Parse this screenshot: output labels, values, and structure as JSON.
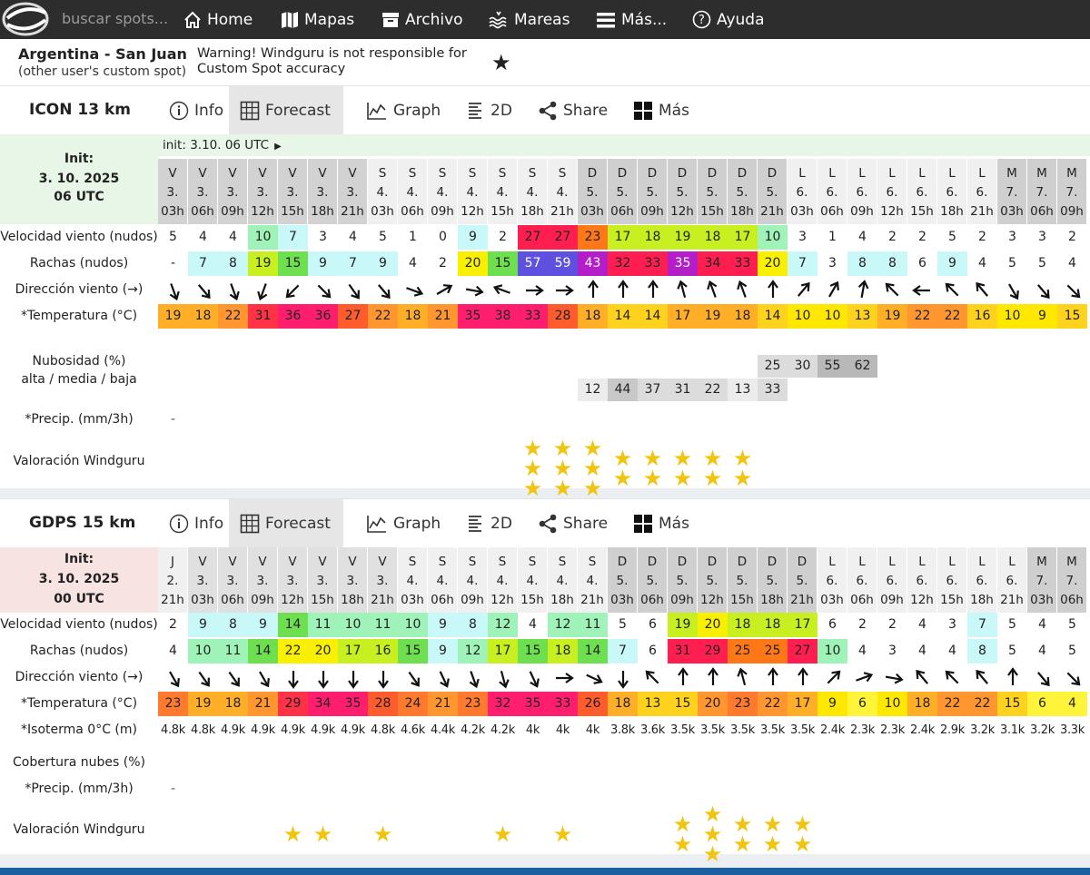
{
  "nav": {
    "search_placeholder": "buscar spots...",
    "items": [
      {
        "label": "Home",
        "icon": "home-icon"
      },
      {
        "label": "Mapas",
        "icon": "map-icon"
      },
      {
        "label": "Archivo",
        "icon": "archive-icon"
      },
      {
        "label": "Mareas",
        "icon": "tides-icon"
      },
      {
        "label": "Más...",
        "icon": "menu-icon"
      },
      {
        "label": "Ayuda",
        "icon": "help-icon"
      }
    ]
  },
  "spot": {
    "name": "Argentina - San Juan",
    "subtitle": "(other user's custom spot)",
    "warning": "Warning! Windguru is not responsible for Custom Spot accuracy",
    "fav": "★"
  },
  "tabs": [
    "Info",
    "Forecast",
    "Graph",
    "2D",
    "Share",
    "Más"
  ],
  "models": [
    {
      "id": "icon",
      "name": "ICON 13 km",
      "init_label": "Init:",
      "init_date": "3. 10. 2025",
      "init_time": "06 UTC",
      "init_line": "init: 3.10. 06 UTC",
      "color": "#e8f6e8",
      "days": [
        "V",
        "V",
        "V",
        "V",
        "V",
        "V",
        "V",
        "S",
        "S",
        "S",
        "S",
        "S",
        "S",
        "S",
        "D",
        "D",
        "D",
        "D",
        "D",
        "D",
        "D",
        "L",
        "L",
        "L",
        "L",
        "L",
        "L",
        "L",
        "M",
        "M",
        "M"
      ],
      "dates": [
        "3.",
        "3.",
        "3.",
        "3.",
        "3.",
        "3.",
        "3.",
        "4.",
        "4.",
        "4.",
        "4.",
        "4.",
        "4.",
        "4.",
        "5.",
        "5.",
        "5.",
        "5.",
        "5.",
        "5.",
        "5.",
        "6.",
        "6.",
        "6.",
        "6.",
        "6.",
        "6.",
        "6.",
        "7.",
        "7.",
        "7."
      ],
      "hours": [
        "03h",
        "06h",
        "09h",
        "12h",
        "15h",
        "18h",
        "21h",
        "03h",
        "06h",
        "09h",
        "12h",
        "15h",
        "18h",
        "21h",
        "03h",
        "06h",
        "09h",
        "12h",
        "15h",
        "18h",
        "21h",
        "03h",
        "06h",
        "09h",
        "12h",
        "15h",
        "18h",
        "21h",
        "03h",
        "06h",
        "09h"
      ],
      "labels": {
        "wind": "Velocidad viento (nudos)",
        "gust": "Rachas (nudos)",
        "dir": "Dirección viento (→)",
        "temp": "*Temperatura (°C)",
        "cloud": "Nubosidad (%)",
        "cloud2": "alta / media / baja",
        "precip": "*Precip. (mm/3h)",
        "precip_value": "-",
        "rating": "Valoración Windguru"
      },
      "wind": [
        5,
        4,
        4,
        10,
        7,
        3,
        4,
        5,
        1,
        0,
        9,
        2,
        27,
        27,
        23,
        17,
        18,
        19,
        18,
        17,
        10,
        3,
        1,
        4,
        2,
        2,
        5,
        2,
        3,
        3,
        2
      ],
      "gust": [
        "-",
        7,
        8,
        19,
        15,
        9,
        7,
        9,
        4,
        2,
        20,
        15,
        57,
        59,
        43,
        32,
        33,
        35,
        34,
        33,
        20,
        7,
        3,
        8,
        8,
        6,
        9,
        4,
        5,
        5,
        4
      ],
      "dir": [
        160,
        140,
        160,
        200,
        225,
        135,
        145,
        140,
        110,
        60,
        100,
        290,
        90,
        90,
        0,
        0,
        0,
        345,
        340,
        340,
        0,
        40,
        30,
        10,
        315,
        270,
        315,
        320,
        150,
        140,
        135
      ],
      "temp": [
        19,
        18,
        22,
        31,
        36,
        36,
        27,
        22,
        18,
        21,
        35,
        38,
        33,
        28,
        18,
        14,
        14,
        17,
        19,
        18,
        14,
        10,
        10,
        13,
        19,
        22,
        22,
        16,
        10,
        9,
        15
      ],
      "cloud_high": [
        null,
        null,
        null,
        null,
        null,
        null,
        null,
        null,
        null,
        null,
        null,
        null,
        null,
        null,
        null,
        null,
        null,
        null,
        null,
        null,
        25,
        30,
        55,
        62,
        null,
        null,
        null,
        null,
        null,
        null,
        null
      ],
      "cloud_low": [
        null,
        null,
        null,
        null,
        null,
        null,
        null,
        null,
        null,
        null,
        null,
        null,
        null,
        null,
        12,
        44,
        37,
        31,
        22,
        13,
        33,
        null,
        null,
        null,
        null,
        null,
        null,
        null,
        null,
        null,
        null
      ],
      "rating": [
        0,
        0,
        0,
        0,
        0,
        0,
        0,
        0,
        0,
        0,
        0,
        0,
        3,
        3,
        3,
        2,
        2,
        2,
        2,
        2,
        0,
        0,
        0,
        0,
        0,
        0,
        0,
        0,
        0,
        0,
        0
      ]
    },
    {
      "id": "gdps",
      "name": "GDPS 15 km",
      "init_label": "Init:",
      "init_date": "3. 10. 2025",
      "init_time": "00 UTC",
      "init_line": "",
      "color": "#f8e3e3",
      "days": [
        "J",
        "V",
        "V",
        "V",
        "V",
        "V",
        "V",
        "V",
        "S",
        "S",
        "S",
        "S",
        "S",
        "S",
        "S",
        "D",
        "D",
        "D",
        "D",
        "D",
        "D",
        "D",
        "L",
        "L",
        "L",
        "L",
        "L",
        "L",
        "L",
        "M",
        "M"
      ],
      "dates": [
        "2.",
        "3.",
        "3.",
        "3.",
        "3.",
        "3.",
        "3.",
        "3.",
        "4.",
        "4.",
        "4.",
        "4.",
        "4.",
        "4.",
        "4.",
        "5.",
        "5.",
        "5.",
        "5.",
        "5.",
        "5.",
        "5.",
        "6.",
        "6.",
        "6.",
        "6.",
        "6.",
        "6.",
        "6.",
        "7.",
        "7."
      ],
      "hours": [
        "21h",
        "03h",
        "06h",
        "09h",
        "12h",
        "15h",
        "18h",
        "21h",
        "03h",
        "06h",
        "09h",
        "12h",
        "15h",
        "18h",
        "21h",
        "03h",
        "06h",
        "09h",
        "12h",
        "15h",
        "18h",
        "21h",
        "03h",
        "06h",
        "09h",
        "12h",
        "15h",
        "18h",
        "21h",
        "03h",
        "06h"
      ],
      "labels": {
        "wind": "Velocidad viento (nudos)",
        "gust": "Rachas (nudos)",
        "dir": "Dirección viento (→)",
        "temp": "*Temperatura (°C)",
        "iso": "*Isoterma 0°C (m)",
        "cloud": "Cobertura nubes (%)",
        "precip": "*Precip. (mm/3h)",
        "precip_value": "-",
        "rating": "Valoración Windguru"
      },
      "wind": [
        2,
        9,
        8,
        9,
        14,
        11,
        10,
        11,
        10,
        9,
        8,
        12,
        4,
        12,
        11,
        5,
        6,
        19,
        20,
        18,
        18,
        17,
        6,
        2,
        2,
        4,
        3,
        7,
        5,
        4,
        5
      ],
      "gust": [
        4,
        10,
        11,
        14,
        22,
        20,
        17,
        16,
        15,
        9,
        12,
        17,
        15,
        18,
        14,
        7,
        6,
        31,
        29,
        25,
        25,
        27,
        10,
        4,
        3,
        4,
        4,
        8,
        5,
        4,
        5
      ],
      "dir": [
        150,
        145,
        145,
        150,
        180,
        180,
        180,
        180,
        145,
        155,
        160,
        165,
        155,
        90,
        115,
        180,
        315,
        0,
        0,
        345,
        0,
        0,
        45,
        70,
        100,
        320,
        315,
        320,
        0,
        140,
        135
      ],
      "temp": [
        23,
        19,
        18,
        21,
        29,
        34,
        35,
        28,
        24,
        21,
        23,
        32,
        35,
        33,
        26,
        18,
        13,
        15,
        20,
        23,
        22,
        17,
        9,
        6,
        10,
        18,
        22,
        22,
        15,
        6,
        4
      ],
      "iso": [
        "4.8k",
        "4.8k",
        "4.9k",
        "4.9k",
        "4.9k",
        "4.9k",
        "4.9k",
        "4.8k",
        "4.6k",
        "4.4k",
        "4.2k",
        "4.2k",
        "4k",
        "4k",
        "4k",
        "3.8k",
        "3.6k",
        "3.5k",
        "3.5k",
        "3.5k",
        "3.5k",
        "3.5k",
        "2.4k",
        "2.3k",
        "2.3k",
        "2.4k",
        "2.9k",
        "3.2k",
        "3.1k",
        "3.2k",
        "3.3k"
      ],
      "rating": [
        0,
        0,
        0,
        0,
        1,
        1,
        0,
        1,
        0,
        0,
        0,
        1,
        0,
        1,
        0,
        0,
        0,
        2,
        3,
        2,
        2,
        2,
        0,
        0,
        0,
        0,
        0,
        0,
        0,
        0,
        0
      ]
    }
  ]
}
